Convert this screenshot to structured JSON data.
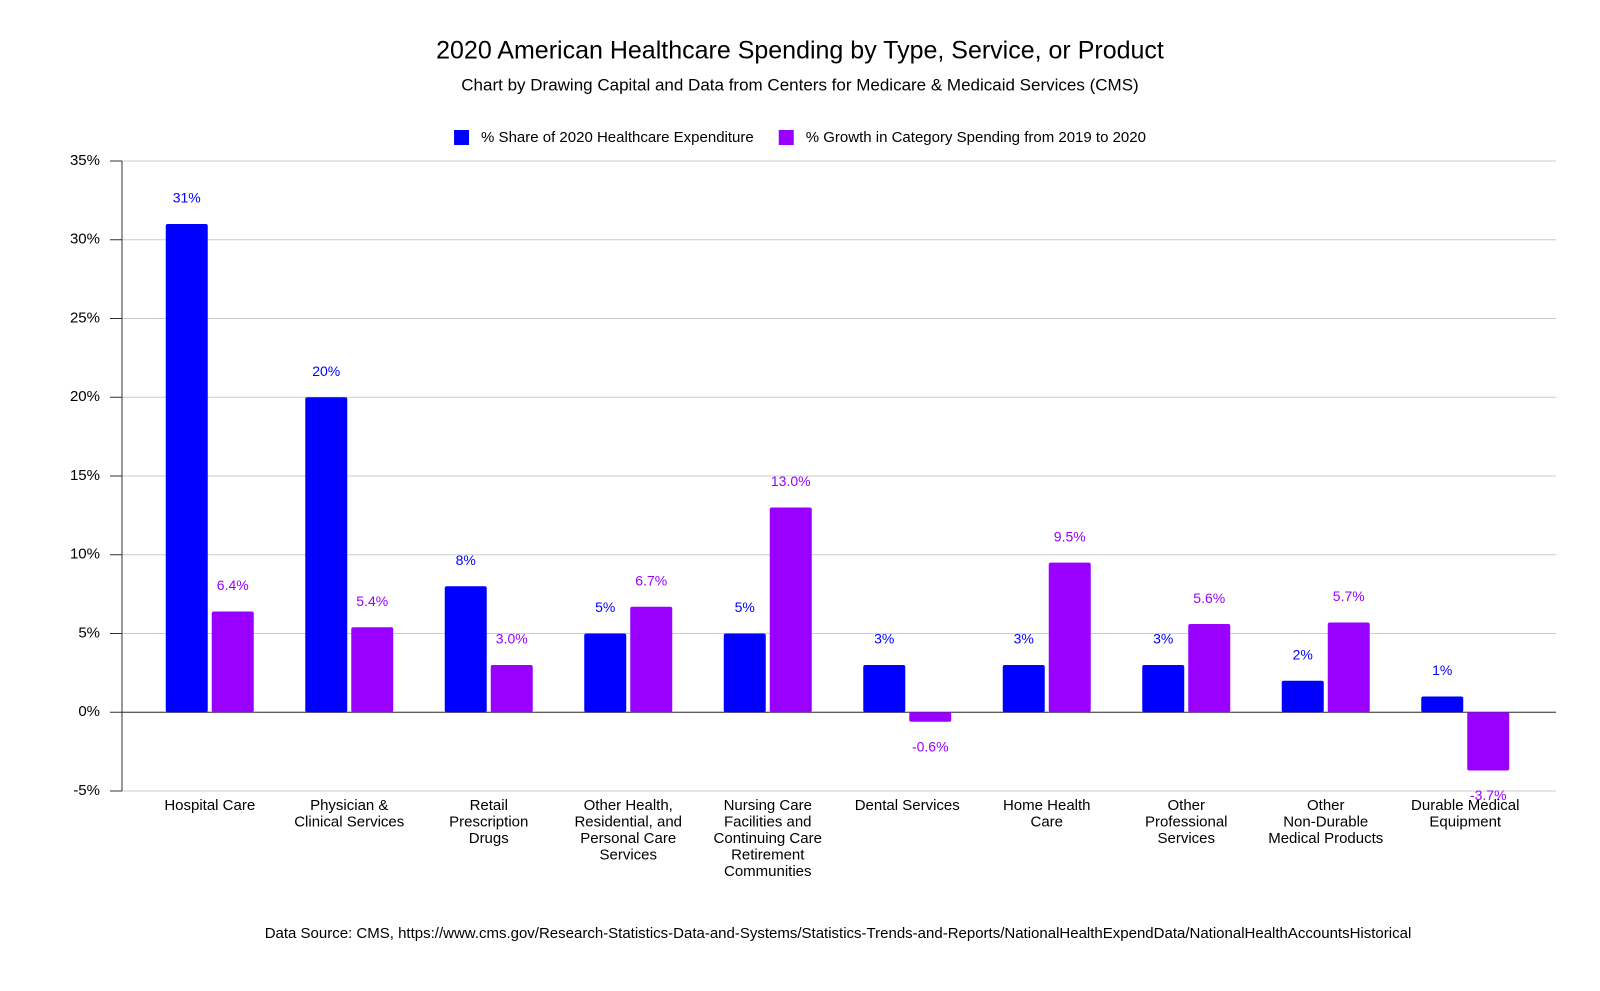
{
  "chart_data": {
    "type": "bar",
    "title": "2020 American Healthcare Spending by Type, Service, or Product",
    "subtitle": "Chart by Drawing Capital and Data from Centers for Medicare & Medicaid Services (CMS)",
    "footnote": "Data Source: CMS, https://www.cms.gov/Research-Statistics-Data-and-Systems/Statistics-Trends-and-Reports/NationalHealthExpendData/NationalHealthAccountsHistorical",
    "categories": [
      "Hospital Care",
      "Physician &\nClinical Services",
      "Retail\nPrescription\nDrugs",
      "Other Health,\nResidential, and\nPersonal Care\nServices",
      "Nursing Care\nFacilities and\nContinuing Care\nRetirement\nCommunities",
      "Dental Services",
      "Home Health\nCare",
      "Other\nProfessional\nServices",
      "Other\nNon-Durable\nMedical Products",
      "Durable Medical\nEquipment"
    ],
    "series": [
      {
        "name": "% Share of 2020 Healthcare Expenditure",
        "color": "#0000ff",
        "values": [
          31,
          20,
          8,
          5,
          5,
          3,
          3,
          3,
          2,
          1
        ],
        "value_labels": [
          "31%",
          "20%",
          "8%",
          "5%",
          "5%",
          "3%",
          "3%",
          "3%",
          "2%",
          "1%"
        ]
      },
      {
        "name": "% Growth in Category Spending from 2019 to 2020",
        "color": "#9900ff",
        "values": [
          6.4,
          5.4,
          3.0,
          6.7,
          13.0,
          -0.6,
          9.5,
          5.6,
          5.7,
          -3.7
        ],
        "value_labels": [
          "6.4%",
          "5.4%",
          "3.0%",
          "6.7%",
          "13.0%",
          "-0.6%",
          "9.5%",
          "5.6%",
          "5.7%",
          "-3.7%"
        ]
      }
    ],
    "ylim": [
      -5,
      35
    ],
    "yticks": [
      {
        "value": -5,
        "label": "-5%"
      },
      {
        "value": 0,
        "label": "0%"
      },
      {
        "value": 5,
        "label": "5%"
      },
      {
        "value": 10,
        "label": "10%"
      },
      {
        "value": 15,
        "label": "15%"
      },
      {
        "value": 20,
        "label": "20%"
      },
      {
        "value": 25,
        "label": "25%"
      },
      {
        "value": 30,
        "label": "30%"
      },
      {
        "value": 35,
        "label": "35%"
      }
    ],
    "grid": true,
    "legend": "top"
  }
}
